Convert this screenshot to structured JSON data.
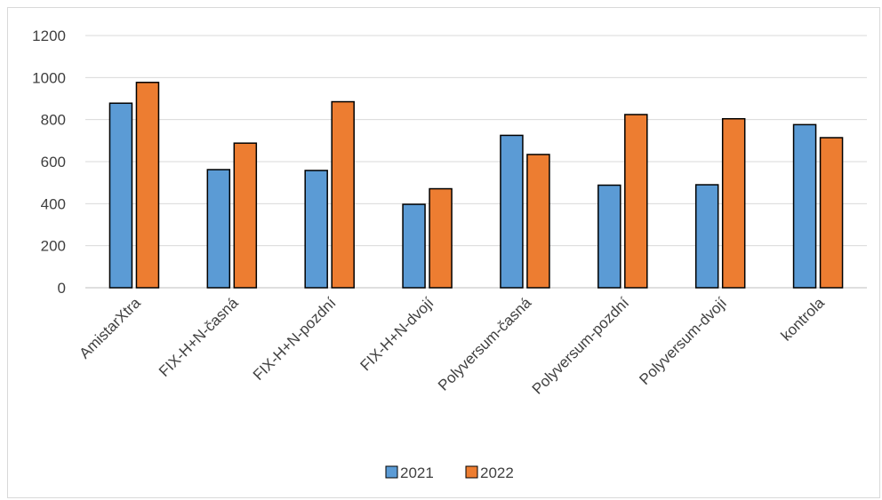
{
  "chart_data": {
    "type": "bar",
    "title": "",
    "xlabel": "",
    "ylabel": "",
    "categories": [
      "AmistarXtra",
      "FIX-H+N-časná",
      "FIX-H+N-pozdní",
      "FIX-H+N-dvojí",
      "Polyversum-časná",
      "Polyversum-pozdní",
      "Polyversum-dvojí",
      "kontrola"
    ],
    "series": [
      {
        "name": "2021",
        "color": "#5b9bd5",
        "values": [
          878,
          562,
          558,
          397,
          725,
          488,
          490,
          776
        ]
      },
      {
        "name": "2022",
        "color": "#ed7d31",
        "values": [
          977,
          688,
          885,
          471,
          634,
          824,
          804,
          714
        ]
      }
    ],
    "ylim": [
      0,
      1200
    ],
    "yticks": [
      0,
      200,
      400,
      600,
      800,
      1000,
      1200
    ],
    "grid": true,
    "legend_position": "bottom"
  }
}
